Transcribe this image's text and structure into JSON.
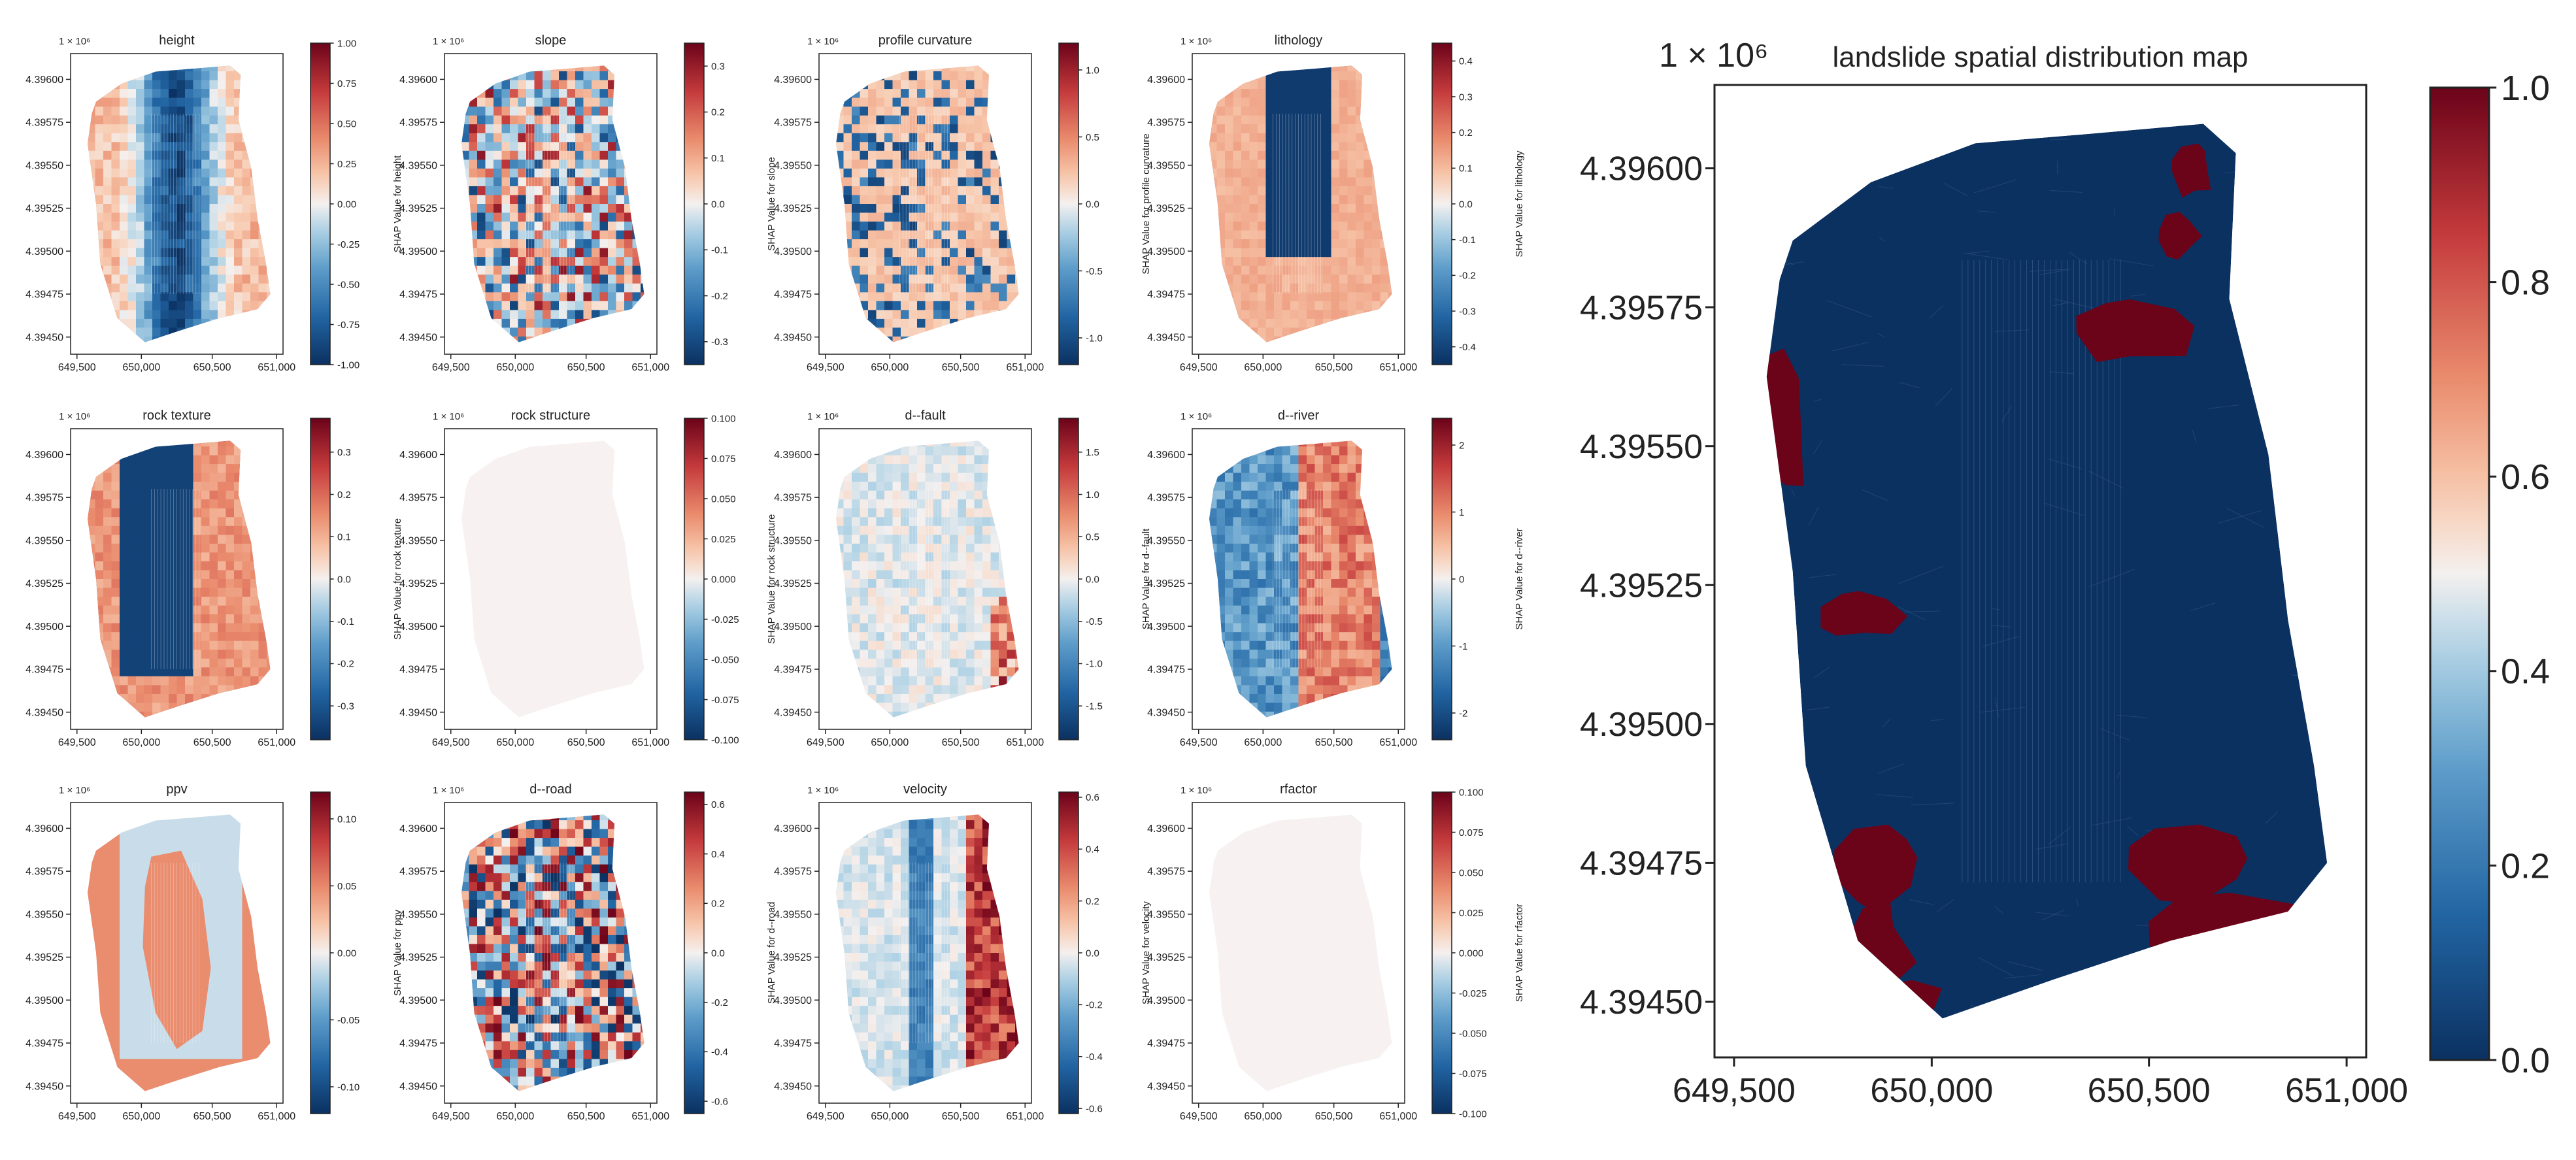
{
  "figure": {
    "colormap": {
      "name": "RdBu_r",
      "low_color": "#0b3161",
      "high_color": "#6b0319",
      "mid_color": "#f4f1f0"
    },
    "map_fill": "#f7f2f1"
  },
  "chart_data": [
    {
      "type": "heatmap",
      "title": "height",
      "offset_label": "1 × 10⁶",
      "xticks": [
        "649,500",
        "650,000",
        "650,500",
        "651,000"
      ],
      "yticks": [
        "4.39600",
        "4.39575",
        "4.39550",
        "4.39525",
        "4.39500",
        "4.39475",
        "4.39450"
      ],
      "xlim": [
        649500,
        651000
      ],
      "ylim": [
        4.3944,
        4.39615
      ],
      "colorbar_label": "SHAP Value for height",
      "cticks": [
        "1.00",
        "0.75",
        "0.50",
        "0.25",
        "0.00",
        "-0.25",
        "-0.50",
        "-0.75",
        "-1.00"
      ],
      "clim": [
        -1.0,
        1.0
      ]
    },
    {
      "type": "heatmap",
      "title": "slope",
      "offset_label": "1 × 10⁶",
      "xticks": [
        "649,500",
        "650,000",
        "650,500",
        "651,000"
      ],
      "yticks": [
        "4.39600",
        "4.39575",
        "4.39550",
        "4.39525",
        "4.39500",
        "4.39475",
        "4.39450"
      ],
      "xlim": [
        649500,
        651000
      ],
      "ylim": [
        4.3944,
        4.39615
      ],
      "colorbar_label": "SHAP Value for slope",
      "cticks": [
        "0.3",
        "0.2",
        "0.1",
        "0.0",
        "-0.1",
        "-0.2",
        "-0.3"
      ],
      "clim": [
        -0.35,
        0.35
      ]
    },
    {
      "type": "heatmap",
      "title": "profile curvature",
      "offset_label": "1 × 10⁶",
      "xticks": [
        "649,500",
        "650,000",
        "650,500",
        "651,000"
      ],
      "yticks": [
        "4.39600",
        "4.39575",
        "4.39550",
        "4.39525",
        "4.39500",
        "4.39475",
        "4.39450"
      ],
      "xlim": [
        649500,
        651000
      ],
      "ylim": [
        4.3944,
        4.39615
      ],
      "colorbar_label": "SHAP Value for profile curvature",
      "cticks": [
        "1.0",
        "0.5",
        "0.0",
        "-0.5",
        "-1.0"
      ],
      "clim": [
        -1.2,
        1.2
      ]
    },
    {
      "type": "heatmap",
      "title": "lithology",
      "offset_label": "1 × 10⁶",
      "xticks": [
        "649,500",
        "650,000",
        "650,500",
        "651,000"
      ],
      "yticks": [
        "4.39600",
        "4.39575",
        "4.39550",
        "4.39525",
        "4.39500",
        "4.39475",
        "4.39450"
      ],
      "xlim": [
        649500,
        651000
      ],
      "ylim": [
        4.3944,
        4.39615
      ],
      "colorbar_label": "SHAP Value for lithology",
      "cticks": [
        "0.4",
        "0.3",
        "0.2",
        "0.1",
        "0.0",
        "-0.1",
        "-0.2",
        "-0.3",
        "-0.4"
      ],
      "clim": [
        -0.45,
        0.45
      ]
    },
    {
      "type": "heatmap",
      "title": "rock texture",
      "offset_label": "1 × 10⁶",
      "xticks": [
        "649,500",
        "650,000",
        "650,500",
        "651,000"
      ],
      "yticks": [
        "4.39600",
        "4.39575",
        "4.39550",
        "4.39525",
        "4.39500",
        "4.39475",
        "4.39450"
      ],
      "xlim": [
        649500,
        651000
      ],
      "ylim": [
        4.3944,
        4.39615
      ],
      "colorbar_label": "SHAP Value for rock texture",
      "cticks": [
        "0.3",
        "0.2",
        "0.1",
        "0.0",
        "-0.1",
        "-0.2",
        "-0.3"
      ],
      "clim": [
        -0.38,
        0.38
      ]
    },
    {
      "type": "heatmap",
      "title": "rock structure",
      "offset_label": "1 × 10⁶",
      "xticks": [
        "649,500",
        "650,000",
        "650,500",
        "651,000"
      ],
      "yticks": [
        "4.39600",
        "4.39575",
        "4.39550",
        "4.39525",
        "4.39500",
        "4.39475",
        "4.39450"
      ],
      "xlim": [
        649500,
        651000
      ],
      "ylim": [
        4.3944,
        4.39615
      ],
      "colorbar_label": "SHAP Value for rock structure",
      "cticks": [
        "0.100",
        "0.075",
        "0.050",
        "0.025",
        "0.000",
        "-0.025",
        "-0.050",
        "-0.075",
        "-0.100"
      ],
      "clim": [
        -0.1,
        0.1
      ]
    },
    {
      "type": "heatmap",
      "title": "d--fault",
      "offset_label": "1 × 10⁶",
      "xticks": [
        "649,500",
        "650,000",
        "650,500",
        "651,000"
      ],
      "yticks": [
        "4.39600",
        "4.39575",
        "4.39550",
        "4.39525",
        "4.39500",
        "4.39475",
        "4.39450"
      ],
      "xlim": [
        649500,
        651000
      ],
      "ylim": [
        4.3944,
        4.39615
      ],
      "colorbar_label": "SHAP Value for d--fault",
      "cticks": [
        "1.5",
        "1.0",
        "0.5",
        "0.0",
        "-0.5",
        "-1.0",
        "-1.5"
      ],
      "clim": [
        -1.9,
        1.9
      ]
    },
    {
      "type": "heatmap",
      "title": "d--river",
      "offset_label": "1 × 10⁶",
      "xticks": [
        "649,500",
        "650,000",
        "650,500",
        "651,000"
      ],
      "yticks": [
        "4.39600",
        "4.39575",
        "4.39550",
        "4.39525",
        "4.39500",
        "4.39475",
        "4.39450"
      ],
      "xlim": [
        649500,
        651000
      ],
      "ylim": [
        4.3944,
        4.39615
      ],
      "colorbar_label": "SHAP Value for d--river",
      "cticks": [
        "2",
        "1",
        "0",
        "-1",
        "-2"
      ],
      "clim": [
        -2.4,
        2.4
      ]
    },
    {
      "type": "heatmap",
      "title": "ppv",
      "offset_label": "1 × 10⁶",
      "xticks": [
        "649,500",
        "650,000",
        "650,500",
        "651,000"
      ],
      "yticks": [
        "4.39600",
        "4.39575",
        "4.39550",
        "4.39525",
        "4.39500",
        "4.39475",
        "4.39450"
      ],
      "xlim": [
        649500,
        651000
      ],
      "ylim": [
        4.3944,
        4.39615
      ],
      "colorbar_label": "SHAP Value for ppv",
      "cticks": [
        "0.10",
        "0.05",
        "0.00",
        "-0.05",
        "-0.10"
      ],
      "clim": [
        -0.12,
        0.12
      ]
    },
    {
      "type": "heatmap",
      "title": "d--road",
      "offset_label": "1 × 10⁶",
      "xticks": [
        "649,500",
        "650,000",
        "650,500",
        "651,000"
      ],
      "yticks": [
        "4.39600",
        "4.39575",
        "4.39550",
        "4.39525",
        "4.39500",
        "4.39475",
        "4.39450"
      ],
      "xlim": [
        649500,
        651000
      ],
      "ylim": [
        4.3944,
        4.39615
      ],
      "colorbar_label": "SHAP Value for d--road",
      "cticks": [
        "0.6",
        "0.4",
        "0.2",
        "0.0",
        "-0.2",
        "-0.4",
        "-0.6"
      ],
      "clim": [
        -0.65,
        0.65
      ]
    },
    {
      "type": "heatmap",
      "title": "velocity",
      "offset_label": "1 × 10⁶",
      "xticks": [
        "649,500",
        "650,000",
        "650,500",
        "651,000"
      ],
      "yticks": [
        "4.39600",
        "4.39575",
        "4.39550",
        "4.39525",
        "4.39500",
        "4.39475",
        "4.39450"
      ],
      "xlim": [
        649500,
        651000
      ],
      "ylim": [
        4.3944,
        4.39615
      ],
      "colorbar_label": "SHAP Value for velocity",
      "cticks": [
        "0.6",
        "0.4",
        "0.2",
        "0.0",
        "-0.2",
        "-0.4",
        "-0.6"
      ],
      "clim": [
        -0.62,
        0.62
      ]
    },
    {
      "type": "heatmap",
      "title": "rfactor",
      "offset_label": "1 × 10⁶",
      "xticks": [
        "649,500",
        "650,000",
        "650,500",
        "651,000"
      ],
      "yticks": [
        "4.39600",
        "4.39575",
        "4.39550",
        "4.39525",
        "4.39500",
        "4.39475",
        "4.39450"
      ],
      "xlim": [
        649500,
        651000
      ],
      "ylim": [
        4.3944,
        4.39615
      ],
      "colorbar_label": "SHAP Value for rfactor",
      "cticks": [
        "0.100",
        "0.075",
        "0.050",
        "0.025",
        "0.000",
        "-0.025",
        "-0.050",
        "-0.075",
        "-0.100"
      ],
      "clim": [
        -0.1,
        0.1
      ]
    },
    {
      "type": "heatmap",
      "title": "landslide spatial distribution map",
      "offset_label": "1 × 10⁶",
      "xticks": [
        "649,500",
        "650,000",
        "650,500",
        "651,000"
      ],
      "yticks": [
        "4.39600",
        "4.39575",
        "4.39550",
        "4.39525",
        "4.39500",
        "4.39475",
        "4.39450"
      ],
      "xlim": [
        649500,
        651000
      ],
      "ylim": [
        4.3944,
        4.39615
      ],
      "colorbar_label": "",
      "cticks": [
        "1.0",
        "0.8",
        "0.6",
        "0.4",
        "0.2",
        "0.0"
      ],
      "clim": [
        0.0,
        1.0
      ]
    }
  ]
}
